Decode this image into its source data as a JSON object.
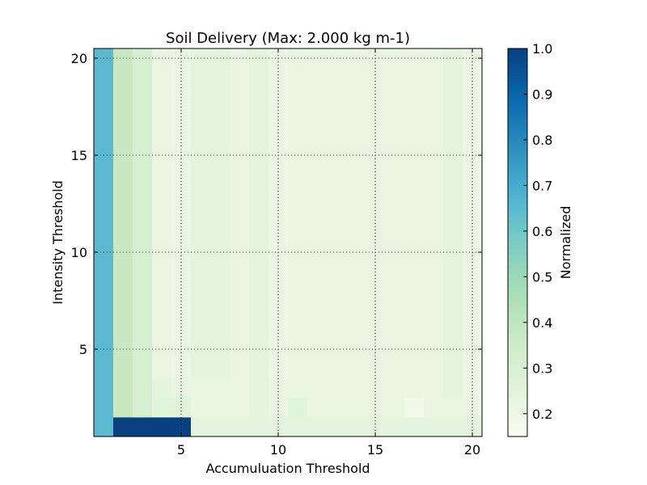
{
  "chart_data": {
    "type": "heatmap",
    "title": "Soil Delivery (Max: 2.000 kg m-1)",
    "xlabel": "Accumuluation Threshold",
    "ylabel": "Intensity Threshold",
    "xlim": [
      0.5,
      20.5
    ],
    "ylim": [
      0.5,
      20.5
    ],
    "x_ticks": [
      5,
      10,
      15,
      20
    ],
    "y_ticks": [
      5,
      10,
      15,
      20
    ],
    "grid": true,
    "colormap": "GnBu",
    "colorbar": {
      "label": "Normalized",
      "min": 0.15,
      "max": 1.0,
      "ticks": [
        0.2,
        0.3,
        0.4,
        0.5,
        0.6,
        0.7,
        0.8,
        0.9,
        1.0
      ],
      "tick_labels": [
        "0.2",
        "0.3",
        "0.4",
        "0.5",
        "0.6",
        "0.7",
        "0.8",
        "0.9",
        "1.0"
      ]
    },
    "x_values": [
      1,
      2,
      3,
      4,
      5,
      6,
      7,
      8,
      9,
      10,
      11,
      12,
      13,
      14,
      15,
      16,
      17,
      18,
      19,
      20
    ],
    "y_values": [
      1,
      2,
      3,
      4,
      5,
      6,
      7,
      8,
      9,
      10,
      11,
      12,
      13,
      14,
      15,
      16,
      17,
      18,
      19,
      20
    ],
    "z": [
      [
        0.65,
        1.0,
        1.0,
        1.0,
        1.0,
        0.24,
        0.24,
        0.24,
        0.24,
        0.24,
        0.24,
        0.24,
        0.24,
        0.24,
        0.24,
        0.24,
        0.24,
        0.24,
        0.24,
        0.24
      ],
      [
        0.65,
        0.38,
        0.31,
        0.25,
        0.25,
        0.22,
        0.22,
        0.22,
        0.24,
        0.22,
        0.25,
        0.22,
        0.22,
        0.22,
        0.22,
        0.22,
        0.18,
        0.22,
        0.22,
        0.22
      ],
      [
        0.65,
        0.38,
        0.31,
        0.24,
        0.22,
        0.22,
        0.22,
        0.22,
        0.24,
        0.22,
        0.22,
        0.22,
        0.22,
        0.22,
        0.22,
        0.22,
        0.22,
        0.22,
        0.24,
        0.2
      ],
      [
        0.65,
        0.38,
        0.31,
        0.22,
        0.2,
        0.24,
        0.24,
        0.22,
        0.24,
        0.2,
        0.22,
        0.22,
        0.22,
        0.22,
        0.22,
        0.22,
        0.22,
        0.22,
        0.24,
        0.2
      ],
      [
        0.65,
        0.38,
        0.31,
        0.22,
        0.2,
        0.24,
        0.24,
        0.22,
        0.24,
        0.2,
        0.22,
        0.22,
        0.22,
        0.22,
        0.22,
        0.22,
        0.22,
        0.22,
        0.24,
        0.2
      ],
      [
        0.65,
        0.38,
        0.31,
        0.22,
        0.2,
        0.24,
        0.24,
        0.22,
        0.24,
        0.2,
        0.22,
        0.22,
        0.22,
        0.22,
        0.22,
        0.22,
        0.22,
        0.22,
        0.24,
        0.2
      ],
      [
        0.65,
        0.38,
        0.31,
        0.22,
        0.2,
        0.24,
        0.24,
        0.22,
        0.24,
        0.2,
        0.22,
        0.22,
        0.22,
        0.22,
        0.22,
        0.22,
        0.22,
        0.22,
        0.24,
        0.2
      ],
      [
        0.65,
        0.38,
        0.31,
        0.22,
        0.2,
        0.24,
        0.24,
        0.22,
        0.24,
        0.2,
        0.22,
        0.22,
        0.22,
        0.22,
        0.22,
        0.22,
        0.22,
        0.22,
        0.24,
        0.2
      ],
      [
        0.65,
        0.38,
        0.31,
        0.22,
        0.2,
        0.24,
        0.24,
        0.22,
        0.24,
        0.2,
        0.22,
        0.22,
        0.22,
        0.22,
        0.22,
        0.22,
        0.22,
        0.22,
        0.24,
        0.2
      ],
      [
        0.65,
        0.38,
        0.31,
        0.22,
        0.2,
        0.24,
        0.24,
        0.22,
        0.24,
        0.2,
        0.22,
        0.22,
        0.22,
        0.22,
        0.22,
        0.22,
        0.22,
        0.22,
        0.24,
        0.2
      ],
      [
        0.65,
        0.38,
        0.31,
        0.22,
        0.2,
        0.24,
        0.24,
        0.22,
        0.24,
        0.2,
        0.22,
        0.22,
        0.22,
        0.22,
        0.22,
        0.22,
        0.22,
        0.22,
        0.24,
        0.2
      ],
      [
        0.65,
        0.38,
        0.31,
        0.22,
        0.2,
        0.24,
        0.24,
        0.22,
        0.24,
        0.2,
        0.22,
        0.22,
        0.22,
        0.22,
        0.22,
        0.22,
        0.22,
        0.22,
        0.24,
        0.2
      ],
      [
        0.65,
        0.38,
        0.31,
        0.22,
        0.2,
        0.24,
        0.24,
        0.22,
        0.24,
        0.2,
        0.22,
        0.22,
        0.22,
        0.22,
        0.22,
        0.22,
        0.22,
        0.22,
        0.24,
        0.2
      ],
      [
        0.65,
        0.38,
        0.31,
        0.22,
        0.2,
        0.24,
        0.24,
        0.22,
        0.24,
        0.2,
        0.22,
        0.22,
        0.22,
        0.22,
        0.22,
        0.22,
        0.22,
        0.22,
        0.24,
        0.2
      ],
      [
        0.65,
        0.38,
        0.31,
        0.22,
        0.2,
        0.24,
        0.24,
        0.22,
        0.24,
        0.2,
        0.22,
        0.22,
        0.22,
        0.22,
        0.22,
        0.22,
        0.22,
        0.22,
        0.24,
        0.2
      ],
      [
        0.65,
        0.38,
        0.31,
        0.22,
        0.2,
        0.24,
        0.24,
        0.22,
        0.24,
        0.2,
        0.22,
        0.22,
        0.22,
        0.22,
        0.22,
        0.22,
        0.22,
        0.22,
        0.24,
        0.2
      ],
      [
        0.65,
        0.38,
        0.31,
        0.22,
        0.2,
        0.24,
        0.24,
        0.22,
        0.24,
        0.2,
        0.22,
        0.22,
        0.22,
        0.22,
        0.22,
        0.22,
        0.22,
        0.22,
        0.24,
        0.2
      ],
      [
        0.65,
        0.38,
        0.31,
        0.22,
        0.2,
        0.24,
        0.24,
        0.22,
        0.24,
        0.2,
        0.22,
        0.22,
        0.22,
        0.22,
        0.22,
        0.22,
        0.22,
        0.22,
        0.24,
        0.2
      ],
      [
        0.65,
        0.38,
        0.31,
        0.22,
        0.2,
        0.24,
        0.24,
        0.22,
        0.24,
        0.2,
        0.22,
        0.22,
        0.22,
        0.22,
        0.22,
        0.22,
        0.22,
        0.22,
        0.24,
        0.2
      ],
      [
        0.65,
        0.38,
        0.31,
        0.22,
        0.2,
        0.24,
        0.24,
        0.22,
        0.24,
        0.2,
        0.22,
        0.22,
        0.22,
        0.22,
        0.22,
        0.22,
        0.22,
        0.22,
        0.24,
        0.2
      ]
    ]
  }
}
